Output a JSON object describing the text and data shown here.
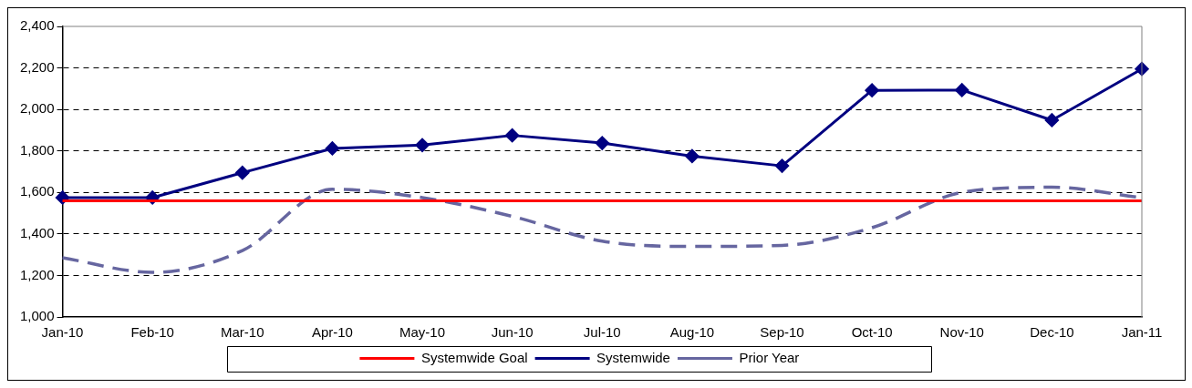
{
  "chart_data": {
    "type": "line",
    "categories": [
      "Jan-10",
      "Feb-10",
      "Mar-10",
      "Apr-10",
      "May-10",
      "Jun-10",
      "Jul-10",
      "Aug-10",
      "Sep-10",
      "Oct-10",
      "Nov-10",
      "Dec-10",
      "Jan-11"
    ],
    "series": [
      {
        "name": "Systemwide Goal",
        "color": "#ff0000",
        "marker": "none",
        "line_style": "solid",
        "values": [
          1560,
          1560,
          1560,
          1560,
          1560,
          1560,
          1560,
          1560,
          1560,
          1560,
          1560,
          1560,
          1560
        ]
      },
      {
        "name": "Systemwide",
        "color": "#000080",
        "marker": "diamond",
        "line_style": "solid",
        "values": [
          1575,
          1575,
          1695,
          1812,
          1828,
          1875,
          1838,
          1775,
          1728,
          2092,
          2093,
          1948,
          2195
        ]
      },
      {
        "name": "Prior Year",
        "color": "#6666a0",
        "marker": "none",
        "line_style": "dashed",
        "values": [
          1285,
          1215,
          1320,
          1615,
          1575,
          1485,
          1365,
          1340,
          1345,
          1430,
          1600,
          1625,
          1575
        ]
      }
    ],
    "ylim": [
      1000,
      2400
    ],
    "yticks": [
      {
        "value": 1000,
        "label": "1,000"
      },
      {
        "value": 1200,
        "label": "1,200"
      },
      {
        "value": 1400,
        "label": "1,400"
      },
      {
        "value": 1600,
        "label": "1,600"
      },
      {
        "value": 1800,
        "label": "1,800"
      },
      {
        "value": 2000,
        "label": "2,000"
      },
      {
        "value": 2200,
        "label": "2,200"
      },
      {
        "value": 2400,
        "label": "2,400"
      }
    ],
    "grid": "y",
    "legend": "bottom"
  }
}
